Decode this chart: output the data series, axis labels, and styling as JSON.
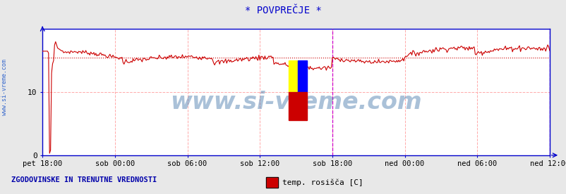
{
  "title": "* POVPREČJE *",
  "title_color": "#0000cc",
  "title_fontsize": 10,
  "bg_color": "#e8e8e8",
  "plot_bg_color": "#ffffff",
  "ylim": [
    0,
    20
  ],
  "yticks": [
    0,
    10
  ],
  "xlim": [
    0,
    504
  ],
  "xtick_labels": [
    "pet 18:00",
    "sob 00:00",
    "sob 06:00",
    "sob 12:00",
    "sob 18:00",
    "ned 00:00",
    "ned 06:00",
    "ned 12:00"
  ],
  "xtick_positions": [
    0,
    72,
    144,
    216,
    288,
    360,
    432,
    504
  ],
  "line_color": "#cc0000",
  "line_width": 0.8,
  "dotted_line_y": 15.5,
  "dotted_line_color": "#cc0000",
  "watermark": "www.si-vreme.com",
  "watermark_color": "#4477aa",
  "watermark_fontsize": 24,
  "left_label": "www.si-vreme.com",
  "left_label_color": "#3366cc",
  "bottom_text": "ZGODOVINSKE IN TRENUTNE VREDNOSTI",
  "bottom_text_color": "#0000aa",
  "legend_label": "temp. rosišča [C]",
  "legend_color": "#cc0000",
  "grid_color": "#ffaaaa",
  "magenta_vlines": [
    288,
    504
  ],
  "axis_color": "#0000cc",
  "num_points": 505
}
